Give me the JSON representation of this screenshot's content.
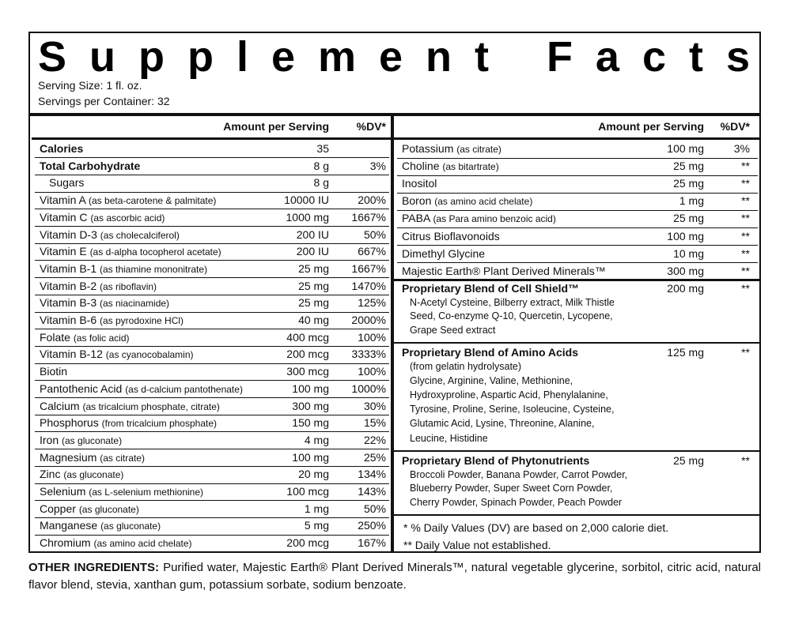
{
  "title": "Supplement Facts",
  "serving_size": "Serving Size: 1 fl. oz.",
  "servings_per_container": "Servings per Container: 32",
  "left": {
    "header": {
      "amount": "Amount per Serving",
      "dv": "%DV*"
    },
    "rows": [
      {
        "name": "Calories",
        "amount": "35"
      },
      {
        "name": "Total Carbohydrate",
        "amount": "8 g",
        "dv": "3%"
      },
      {
        "name": "Sugars",
        "amount": "8 g"
      },
      {
        "name": "Vitamin A",
        "note": "(as beta-carotene & palmitate)",
        "amount": "10000 IU",
        "dv": "200%"
      },
      {
        "name": "Vitamin C",
        "note": "(as ascorbic acid)",
        "amount": "1000 mg",
        "dv": "1667%"
      },
      {
        "name": "Vitamin D-3",
        "note": "(as cholecalciferol)",
        "amount": "200 IU",
        "dv": "50%"
      },
      {
        "name": "Vitamin E",
        "note": "(as d-alpha tocopherol acetate)",
        "amount": "200 IU",
        "dv": "667%"
      },
      {
        "name": "Vitamin B-1",
        "note": "(as thiamine mononitrate)",
        "amount": "25 mg",
        "dv": "1667%"
      },
      {
        "name": "Vitamin B-2",
        "note": "(as riboflavin)",
        "amount": "25 mg",
        "dv": "1470%"
      },
      {
        "name": "Vitamin B-3",
        "note": "(as niacinamide)",
        "amount": "25 mg",
        "dv": "125%"
      },
      {
        "name": "Vitamin B-6",
        "note": "(as pyrodoxine HCl)",
        "amount": "40 mg",
        "dv": "2000%"
      },
      {
        "name": "Folate",
        "note": "(as folic acid)",
        "amount": "400 mcg",
        "dv": "100%"
      },
      {
        "name": "Vitamin B-12",
        "note": "(as cyanocobalamin)",
        "amount": "200 mcg",
        "dv": "3333%"
      },
      {
        "name": "Biotin",
        "amount": "300 mcg",
        "dv": "100%"
      },
      {
        "name": "Pantothenic Acid",
        "note": "(as d-calcium pantothenate)",
        "amount": "100 mg",
        "dv": "1000%"
      },
      {
        "name": "Calcium",
        "note": "(as tricalcium phosphate, citrate)",
        "amount": "300 mg",
        "dv": "30%"
      },
      {
        "name": "Phosphorus",
        "note": "(from tricalcium phosphate)",
        "amount": "150 mg",
        "dv": "15%"
      },
      {
        "name": "Iron",
        "note": "(as gluconate)",
        "amount": "4 mg",
        "dv": "22%"
      },
      {
        "name": "Magnesium",
        "note": "(as citrate)",
        "amount": "100 mg",
        "dv": "25%"
      },
      {
        "name": "Zinc",
        "note": "(as gluconate)",
        "amount": "20 mg",
        "dv": "134%"
      },
      {
        "name": "Selenium",
        "note": "(as L-selenium methionine)",
        "amount": "100 mcg",
        "dv": "143%"
      },
      {
        "name": "Copper",
        "note": "(as gluconate)",
        "amount": "1 mg",
        "dv": "50%"
      },
      {
        "name": "Manganese",
        "note": "(as gluconate)",
        "amount": "5 mg",
        "dv": "250%"
      },
      {
        "name": "Chromium",
        "note": "(as amino acid chelate)",
        "amount": "200 mcg",
        "dv": "167%"
      }
    ]
  },
  "right": {
    "header": {
      "amount": "Amount per Serving",
      "dv": "%DV*"
    },
    "rows": [
      {
        "name": "Potassium",
        "note": "(as citrate)",
        "amount": "100 mg",
        "dv": "3%"
      },
      {
        "name": "Choline",
        "note": "(as bitartrate)",
        "amount": "25 mg",
        "dv": "**"
      },
      {
        "name": "Inositol",
        "amount": "25 mg",
        "dv": "**"
      },
      {
        "name": "Boron",
        "note": "(as amino acid chelate)",
        "amount": "1 mg",
        "dv": "**"
      },
      {
        "name": "PABA",
        "note": "(as Para amino benzoic acid)",
        "amount": "25 mg",
        "dv": "**"
      },
      {
        "name": "Citrus Bioflavonoids",
        "amount": "100 mg",
        "dv": "**"
      },
      {
        "name": "Dimethyl Glycine",
        "amount": "10 mg",
        "dv": "**"
      },
      {
        "name": "Majestic Earth® Plant Derived Minerals™",
        "amount": "300 mg",
        "dv": "**"
      }
    ],
    "blends": [
      {
        "name": "Proprietary Blend of Cell Shield™",
        "amount": "200 mg",
        "dv": "**",
        "lines": [
          "N-Acetyl Cysteine, Bilberry extract, Milk Thistle",
          "Seed, Co-enzyme Q-10, Quercetin, Lycopene,",
          "Grape Seed extract"
        ]
      },
      {
        "name": "Proprietary Blend of Amino Acids",
        "amount": "125 mg",
        "dv": "**",
        "lines": [
          "(from gelatin hydrolysate)",
          "Glycine, Arginine, Valine, Methionine,",
          "Hydroxyproline, Aspartic Acid, Phenylalanine,",
          "Tyrosine, Proline, Serine, Isoleucine, Cysteine,",
          "Glutamic Acid, Lysine, Threonine, Alanine,",
          "Leucine, Histidine"
        ]
      },
      {
        "name": "Proprietary Blend of Phytonutrients",
        "amount": "25 mg",
        "dv": "**",
        "lines": [
          "Broccoli Powder, Banana Powder, Carrot Powder,",
          "Blueberry Powder, Super Sweet Corn Powder,",
          "Cherry Powder, Spinach Powder, Peach Powder"
        ]
      }
    ],
    "footnotes": [
      "* % Daily Values (DV) are based on 2,000 calorie diet.",
      "** Daily Value not established."
    ]
  },
  "other_ingredients": {
    "label": "OTHER INGREDIENTS:",
    "text": "Purified water, Majestic Earth® Plant Derived Minerals™, natural vegetable glycerine, sorbitol, citric acid, natural flavor blend, stevia, xanthan gum, potassium sorbate, sodium benzoate."
  }
}
